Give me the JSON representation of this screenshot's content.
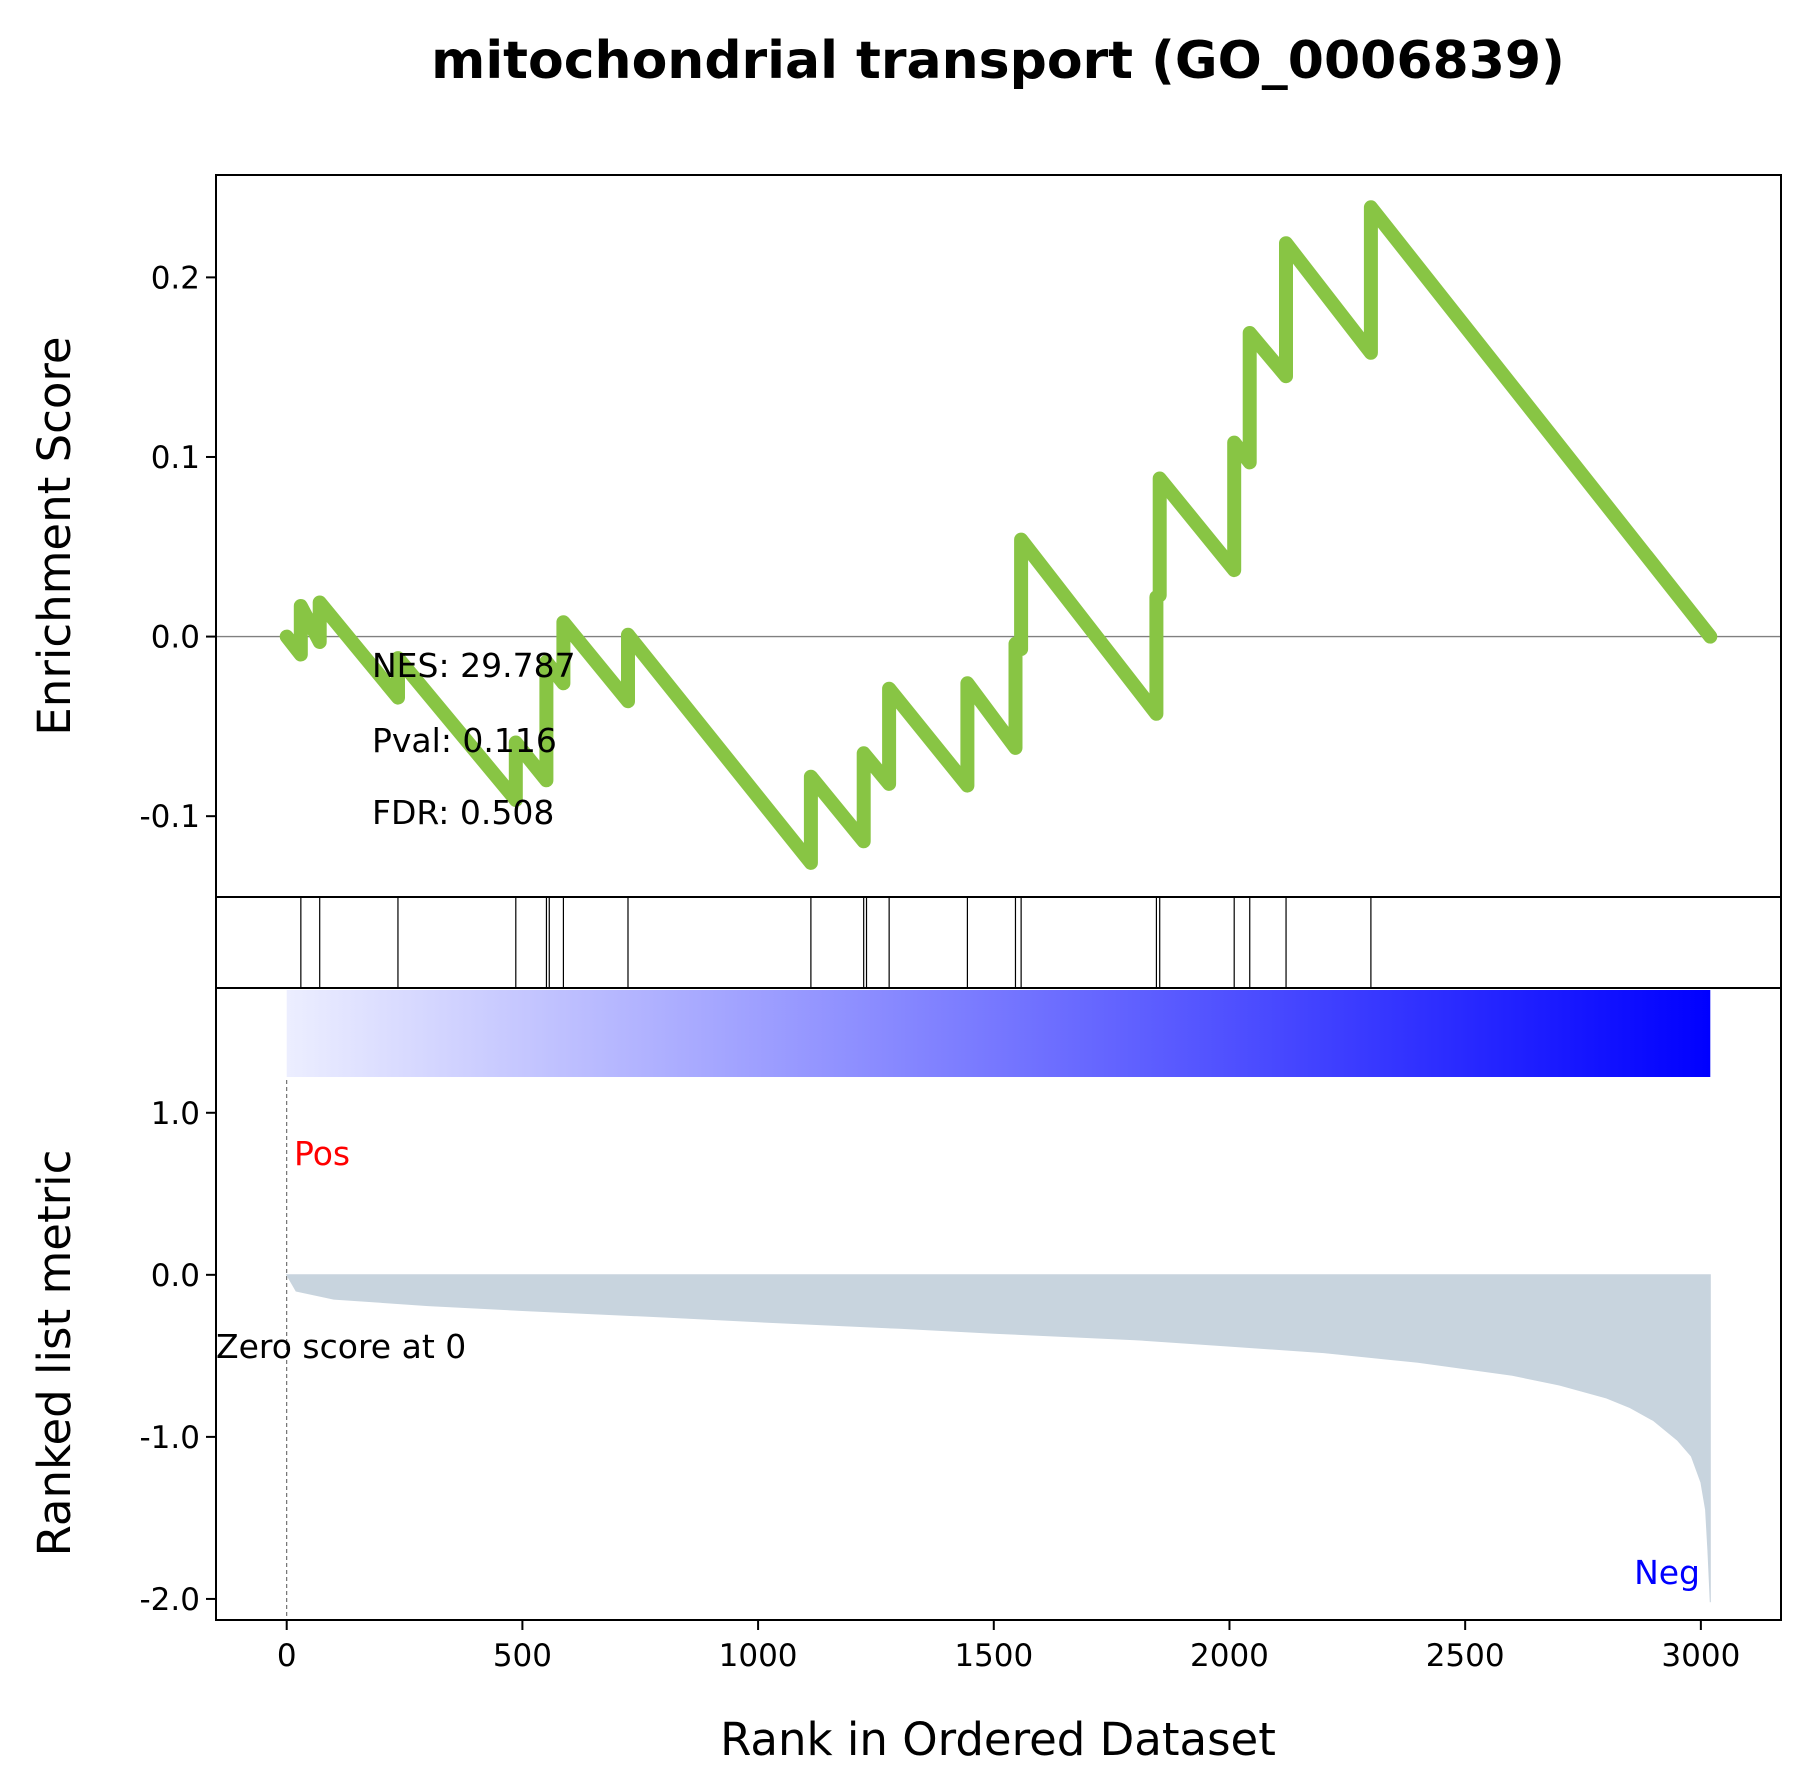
{
  "chart_data": {
    "type": "line",
    "title": "mitochondrial transport (GO_0006839)",
    "xlabel": "Rank in Ordered Dataset",
    "xlim": [
      -150,
      3170
    ],
    "x_ticks": [
      0,
      500,
      1000,
      1500,
      2000,
      2500,
      3000
    ],
    "x_tick_labels": [
      "0",
      "500",
      "1000",
      "1500",
      "2000",
      "2500",
      "3000"
    ],
    "enrichment": {
      "ylabel": "Enrichment Score",
      "ylim": [
        -0.145,
        0.257
      ],
      "y_ticks": [
        -0.1,
        0.0,
        0.1,
        0.2
      ],
      "y_tick_labels": [
        "-0.1",
        "0.0",
        "0.1",
        "0.2"
      ],
      "color": "#88c544",
      "zero_line_color": "#808080",
      "stats": [
        "NES: 29.787",
        "Pval: 0.116",
        "FDR: 0.508"
      ],
      "series": [
        {
          "x": [
            0,
            30,
            30,
            70,
            70,
            236,
            236,
            486,
            486,
            551,
            551,
            587,
            587,
            724,
            724,
            1112,
            1112,
            1224,
            1224,
            1278,
            1278,
            1444,
            1444,
            1546,
            1546,
            1558,
            1558,
            1845,
            1845,
            1852,
            1852,
            2010,
            2010,
            2043,
            2043,
            2120,
            2120,
            2300,
            2300,
            3020
          ],
          "y": [
            0.0,
            -0.01,
            0.017,
            -0.003,
            0.019,
            -0.034,
            -0.012,
            -0.091,
            -0.059,
            -0.08,
            -0.014,
            -0.026,
            0.008,
            -0.036,
            0.001,
            -0.126,
            -0.078,
            -0.114,
            -0.065,
            -0.082,
            -0.029,
            -0.083,
            -0.026,
            -0.062,
            -0.004,
            -0.007,
            0.054,
            -0.043,
            0.022,
            0.023,
            0.088,
            0.037,
            0.108,
            0.097,
            0.169,
            0.145,
            0.219,
            0.158,
            0.239,
            0.0
          ]
        }
      ]
    },
    "hits": {
      "positions": [
        30,
        70,
        236,
        486,
        551,
        557,
        587,
        724,
        1112,
        1224,
        1230,
        1278,
        1444,
        1546,
        1558,
        1845,
        1852,
        2010,
        2043,
        2120,
        2300
      ]
    },
    "ranked_metric": {
      "ylabel": "Ranked list metric",
      "ylim": [
        -2.13,
        1.77
      ],
      "y_ticks": [
        -2.0,
        -1.0,
        0.0,
        1.0
      ],
      "y_tick_labels": [
        "-2.0",
        "-1.0",
        "0.0",
        "1.0"
      ],
      "fill_color": "#c8d4de",
      "series": [
        {
          "x": [
            0,
            20,
            100,
            300,
            500,
            800,
            1000,
            1300,
            1500,
            1800,
            2000,
            2200,
            2400,
            2600,
            2700,
            2800,
            2850,
            2900,
            2950,
            2980,
            3000,
            3010,
            3015,
            3020
          ],
          "y": [
            0.0,
            -0.1,
            -0.15,
            -0.19,
            -0.22,
            -0.26,
            -0.29,
            -0.33,
            -0.36,
            -0.4,
            -0.44,
            -0.48,
            -0.54,
            -0.62,
            -0.68,
            -0.76,
            -0.82,
            -0.9,
            -1.02,
            -1.12,
            -1.28,
            -1.45,
            -1.7,
            -2.02
          ]
        }
      ],
      "gradient": {
        "x_range": [
          0,
          3020
        ],
        "start_color": "#eceeff",
        "end_color": "#0000ff"
      },
      "pos_label": "Pos",
      "pos_color": "#ff0000",
      "neg_label": "Neg",
      "neg_color": "#0000ff",
      "zero_score_label": "Zero score at 0",
      "zero_score_x": 0
    }
  }
}
